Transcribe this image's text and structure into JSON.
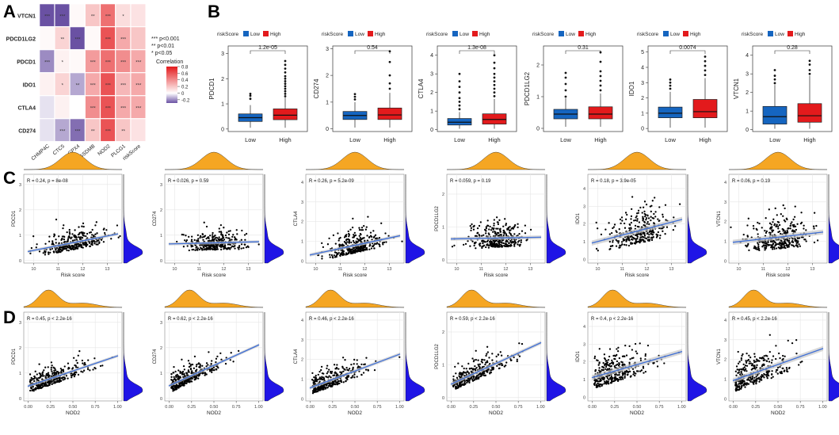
{
  "panel_labels": [
    "A",
    "B",
    "C",
    "D"
  ],
  "colors": {
    "heat_low": "#6a51a3",
    "heat_mid": "#ffffff",
    "heat_high": "#e31a1c",
    "box_low": "#1565c0",
    "box_high": "#e31a1c",
    "density_x": "#f5a623",
    "density_y": "#1f14e6",
    "reg_line": "#3f6fd6",
    "reg_band": "#c8c8c8"
  },
  "chart_data": [
    {
      "id": "A",
      "type": "heatmap",
      "rows": [
        "VTCN1",
        "PDCD1LG2",
        "PDCD1",
        "IDO1",
        "CTLA4",
        "CD274"
      ],
      "cols": [
        "CHMP4C",
        "CTC5",
        "GPX4",
        "GSDMB",
        "NOD2",
        "PLCG1",
        "riskScore"
      ],
      "values": [
        [
          -0.3,
          -0.3,
          0.02,
          0.2,
          0.5,
          0.12,
          0.1
        ],
        [
          0.02,
          0.15,
          -0.3,
          0.02,
          0.6,
          0.3,
          0.2
        ],
        [
          -0.2,
          0.05,
          0.02,
          0.35,
          0.5,
          0.4,
          0.3
        ],
        [
          0.05,
          0.15,
          -0.15,
          0.3,
          0.6,
          0.25,
          0.3
        ],
        [
          -0.05,
          0.05,
          0.0,
          0.4,
          0.6,
          0.3,
          0.3
        ],
        [
          -0.05,
          -0.15,
          -0.25,
          0.2,
          0.6,
          0.2,
          0.1
        ]
      ],
      "stars": [
        [
          "***",
          "***",
          "",
          "**",
          "***",
          "*",
          ""
        ],
        [
          "",
          "**",
          "***",
          "",
          "***",
          "***",
          ""
        ],
        [
          "***",
          "*",
          "",
          "***",
          "***",
          "***",
          "***"
        ],
        [
          "",
          "*",
          "**",
          "***",
          "***",
          "***",
          "***"
        ],
        [
          "",
          "",
          "",
          "***",
          "***",
          "***",
          "***"
        ],
        [
          "",
          "***",
          "***",
          "**",
          "***",
          "**",
          ""
        ]
      ],
      "sig_legend": [
        "***  p<0.001",
        "**  p<0.01",
        "*  p<0.05"
      ],
      "legend_title": "Correlation",
      "legend_ticks": [
        "0.8",
        "0.6",
        "0.4",
        "0.2",
        "0",
        "-0.2"
      ],
      "legend_range": [
        -0.3,
        0.8
      ]
    },
    {
      "id": "B",
      "type": "box",
      "legend_title": "riskScore",
      "legend_labels": [
        "Low",
        "High"
      ],
      "categories": [
        "Low",
        "High"
      ],
      "panels": [
        {
          "ylabel": "PDCD1",
          "yticks": [
            0,
            1,
            2,
            3
          ],
          "ylim": [
            -0.1,
            3.3
          ],
          "pvalue": "1.2e-05",
          "low": [
            0.3,
            0.45,
            0.6,
            0.05,
            0.95
          ],
          "high": [
            0.37,
            0.55,
            0.8,
            0.05,
            1.25
          ],
          "low_out": [
            1.2,
            1.32,
            1.4
          ],
          "high_out": [
            1.3,
            1.4,
            1.5,
            1.6,
            1.7,
            1.8,
            1.9,
            2.0,
            2.1,
            2.25,
            2.4,
            2.55,
            2.7
          ]
        },
        {
          "ylabel": "CD274",
          "yticks": [
            0,
            1,
            2,
            3
          ],
          "ylim": [
            -0.1,
            3.1
          ],
          "pvalue": "0.54",
          "low": [
            0.35,
            0.5,
            0.65,
            0.05,
            1.0
          ],
          "high": [
            0.35,
            0.52,
            0.78,
            0.05,
            1.35
          ],
          "low_out": [
            1.1,
            1.2,
            1.3
          ],
          "high_out": [
            1.5,
            1.7,
            2.0,
            2.5,
            2.9
          ]
        },
        {
          "ylabel": "CTLA4",
          "yticks": [
            0,
            1,
            2,
            3,
            4
          ],
          "ylim": [
            -0.1,
            4.5
          ],
          "pvalue": "1.3e-08",
          "low": [
            0.25,
            0.4,
            0.6,
            0.05,
            0.95
          ],
          "high": [
            0.3,
            0.55,
            0.85,
            0.05,
            1.65
          ],
          "low_out": [
            1.1,
            1.3,
            1.5,
            1.7,
            2.0,
            2.3,
            2.6,
            3.0
          ],
          "high_out": [
            1.8,
            2.0,
            2.2,
            2.4,
            2.6,
            2.8,
            3.0,
            3.3,
            3.6,
            4.0
          ]
        },
        {
          "ylabel": "PDCD1LG2",
          "yticks": [
            0,
            1,
            2
          ],
          "ylim": [
            -0.1,
            2.6
          ],
          "pvalue": "0.31",
          "low": [
            0.3,
            0.45,
            0.6,
            0.05,
            0.95
          ],
          "high": [
            0.3,
            0.45,
            0.68,
            0.05,
            1.1
          ],
          "low_out": [
            1.0,
            1.2,
            1.4,
            1.6,
            1.75
          ],
          "high_out": [
            1.2,
            1.35,
            1.5,
            1.65,
            1.8,
            2.1,
            2.4
          ]
        },
        {
          "ylabel": "IDO1",
          "yticks": [
            0,
            1,
            2,
            3,
            4,
            5
          ],
          "ylim": [
            -0.2,
            5.4
          ],
          "pvalue": "0.0074",
          "low": [
            0.7,
            1.0,
            1.4,
            0.05,
            2.4
          ],
          "high": [
            0.7,
            1.1,
            1.9,
            0.05,
            3.3
          ],
          "low_out": [
            2.6,
            2.8,
            3.0,
            3.2
          ],
          "high_out": [
            3.5,
            3.8,
            4.1,
            4.4,
            4.7
          ]
        },
        {
          "ylabel": "VTCN1",
          "yticks": [
            0,
            1,
            2,
            3,
            4
          ],
          "ylim": [
            -0.1,
            4.5
          ],
          "pvalue": "0.28",
          "low": [
            0.3,
            0.7,
            1.25,
            0.05,
            2.4
          ],
          "high": [
            0.4,
            0.75,
            1.4,
            0.05,
            2.9
          ],
          "low_out": [
            2.5,
            2.7,
            2.9,
            3.2
          ],
          "high_out": [
            3.0,
            3.2,
            3.5,
            3.7
          ]
        }
      ]
    },
    {
      "id": "C",
      "type": "scatter",
      "xlabel": "Risk score",
      "xticks": [
        10,
        11,
        12,
        13
      ],
      "xlim": [
        9.6,
        13.6
      ],
      "panels": [
        {
          "ylabel": "PDCD1",
          "annotation": "R = 0.24, p = 8e-08",
          "slope": 0.24,
          "yticks": [
            0,
            1,
            2,
            3
          ],
          "ylim": [
            -0.1,
            3.4
          ],
          "ymean": 0.55,
          "yspread": 0.32,
          "seed": 11
        },
        {
          "ylabel": "CD274",
          "annotation": "R = 0.026, p = 0.59",
          "slope": 0.03,
          "yticks": [
            0,
            1,
            2,
            3
          ],
          "ylim": [
            -0.1,
            3.4
          ],
          "ymean": 0.55,
          "yspread": 0.32,
          "seed": 12
        },
        {
          "ylabel": "CTLA4",
          "annotation": "R = 0.26, p = 5.2e-09",
          "slope": 0.26,
          "yticks": [
            0,
            1,
            2,
            3,
            4
          ],
          "ylim": [
            -0.1,
            4.4
          ],
          "ymean": 0.6,
          "yspread": 0.45,
          "seed": 13
        },
        {
          "ylabel": "PDCD1LG2",
          "annotation": "R = 0.059, p = 0.19",
          "slope": 0.06,
          "yticks": [
            0,
            1,
            2
          ],
          "ylim": [
            -0.1,
            2.6
          ],
          "ymean": 0.5,
          "yspread": 0.3,
          "seed": 14
        },
        {
          "ylabel": "IDO1",
          "annotation": "R = 0.18, p = 3.9e-05",
          "slope": 0.18,
          "yticks": [
            0,
            1,
            2,
            3,
            4
          ],
          "ylim": [
            -0.2,
            4.8
          ],
          "ymean": 1.2,
          "yspread": 0.8,
          "seed": 15
        },
        {
          "ylabel": "VTCN1",
          "annotation": "R = 0.06, p = 0.19",
          "slope": 0.06,
          "yticks": [
            0,
            1,
            2,
            3,
            4
          ],
          "ylim": [
            -0.1,
            4.4
          ],
          "ymean": 0.9,
          "yspread": 0.7,
          "seed": 16
        }
      ]
    },
    {
      "id": "D",
      "type": "scatter",
      "xlabel": "NOD2",
      "xticks": [
        0.0,
        0.25,
        0.5,
        0.75,
        1.0
      ],
      "xtick_labels": [
        "0.00",
        "0.25",
        "0.50",
        "0.75",
        "1.00"
      ],
      "xlim": [
        -0.05,
        1.05
      ],
      "panels": [
        {
          "ylabel": "PDCD1",
          "annotation": "R = 0.45, p < 2.2e-16",
          "slope": 0.45,
          "yticks": [
            0,
            1,
            2,
            3
          ],
          "ylim": [
            -0.1,
            3.4
          ],
          "ymean": 0.55,
          "yspread": 0.32,
          "seed": 21
        },
        {
          "ylabel": "CD274",
          "annotation": "R = 0.62, p < 2.2e-16",
          "slope": 0.62,
          "yticks": [
            0,
            1,
            2,
            3
          ],
          "ylim": [
            -0.1,
            3.4
          ],
          "ymean": 0.55,
          "yspread": 0.32,
          "seed": 22
        },
        {
          "ylabel": "CTLA4",
          "annotation": "R = 0.46, p < 2.2e-16",
          "slope": 0.46,
          "yticks": [
            0,
            1,
            2,
            3,
            4
          ],
          "ylim": [
            -0.1,
            4.4
          ],
          "ymean": 0.6,
          "yspread": 0.45,
          "seed": 23
        },
        {
          "ylabel": "PDCD1LG2",
          "annotation": "R = 0.59, p < 2.2e-16",
          "slope": 0.59,
          "yticks": [
            0,
            1,
            2
          ],
          "ylim": [
            -0.1,
            2.6
          ],
          "ymean": 0.5,
          "yspread": 0.3,
          "seed": 24
        },
        {
          "ylabel": "IDO1",
          "annotation": "R = 0.4, p < 2.2e-16",
          "slope": 0.4,
          "yticks": [
            0,
            1,
            2,
            3,
            4
          ],
          "ylim": [
            -0.2,
            4.8
          ],
          "ymean": 1.2,
          "yspread": 0.8,
          "seed": 25
        },
        {
          "ylabel": "VTCN1",
          "annotation": "R = 0.45, p < 2.2e-16",
          "slope": 0.45,
          "yticks": [
            0,
            1,
            2,
            3,
            4
          ],
          "ylim": [
            -0.1,
            4.4
          ],
          "ymean": 0.9,
          "yspread": 0.7,
          "seed": 26
        }
      ]
    }
  ]
}
